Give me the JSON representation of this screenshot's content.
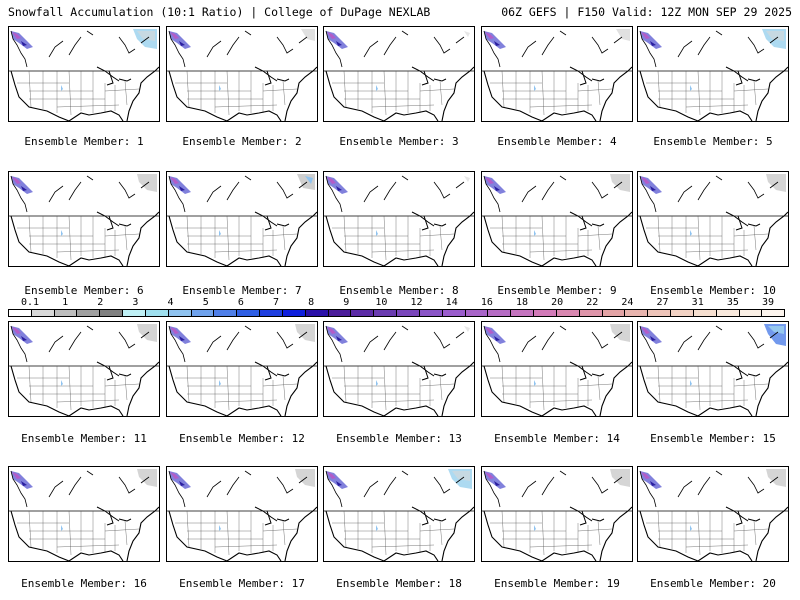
{
  "header": {
    "left": "Snowfall Accumulation (10:1 Ratio) | College of DuPage NEXLAB",
    "right": "06Z GEFS | F150 Valid: 12Z MON SEP 29 2025"
  },
  "members": [
    {
      "label": "Ensemble Member: 1",
      "canada_snow": "heavy",
      "ne_snow": "light-blue"
    },
    {
      "label": "Ensemble Member: 2",
      "canada_snow": "heavy",
      "ne_snow": "light"
    },
    {
      "label": "Ensemble Member: 3",
      "canada_snow": "heavy",
      "ne_snow": "trace"
    },
    {
      "label": "Ensemble Member: 4",
      "canada_snow": "heavy",
      "ne_snow": "light"
    },
    {
      "label": "Ensemble Member: 5",
      "canada_snow": "heavy",
      "ne_snow": "light-blue"
    },
    {
      "label": "Ensemble Member: 6",
      "canada_snow": "heavy",
      "ne_snow": "gray"
    },
    {
      "label": "Ensemble Member: 7",
      "canada_snow": "heavy",
      "ne_snow": "gray-blue"
    },
    {
      "label": "Ensemble Member: 8",
      "canada_snow": "heavy",
      "ne_snow": "trace"
    },
    {
      "label": "Ensemble Member: 9",
      "canada_snow": "heavy",
      "ne_snow": "gray"
    },
    {
      "label": "Ensemble Member: 10",
      "canada_snow": "heavy",
      "ne_snow": "gray"
    },
    {
      "label": "Ensemble Member: 11",
      "canada_snow": "heavy",
      "ne_snow": "gray"
    },
    {
      "label": "Ensemble Member: 12",
      "canada_snow": "heavy",
      "ne_snow": "gray"
    },
    {
      "label": "Ensemble Member: 13",
      "canada_snow": "heavy",
      "ne_snow": "trace"
    },
    {
      "label": "Ensemble Member: 14",
      "canada_snow": "heavy",
      "ne_snow": "gray"
    },
    {
      "label": "Ensemble Member: 15",
      "canada_snow": "heavy",
      "ne_snow": "blue"
    },
    {
      "label": "Ensemble Member: 16",
      "canada_snow": "heavy",
      "ne_snow": "gray"
    },
    {
      "label": "Ensemble Member: 17",
      "canada_snow": "heavy",
      "ne_snow": "gray"
    },
    {
      "label": "Ensemble Member: 18",
      "canada_snow": "heavy",
      "ne_snow": "light-blue"
    },
    {
      "label": "Ensemble Member: 19",
      "canada_snow": "heavy",
      "ne_snow": "gray"
    },
    {
      "label": "Ensemble Member: 20",
      "canada_snow": "heavy",
      "ne_snow": "gray"
    }
  ],
  "colorbar": {
    "labels": [
      "0.1",
      "1",
      "2",
      "3",
      "4",
      "5",
      "6",
      "7",
      "8",
      "9",
      "10",
      "12",
      "14",
      "16",
      "18",
      "20",
      "22",
      "24",
      "27",
      "31",
      "35",
      "39"
    ],
    "colors": [
      "#ffffff",
      "#d9d9d9",
      "#bdbdbd",
      "#a0a0a0",
      "#808080",
      "#bff0f5",
      "#9fe0ef",
      "#8fc3f0",
      "#6fa2ec",
      "#4f7fe8",
      "#2f5fe4",
      "#1f3fe0",
      "#0f1fdd",
      "#2a10a8",
      "#4b1c9a",
      "#5c2ba6",
      "#6a3bb0",
      "#7a46bb",
      "#8a54c6",
      "#9a5ccc",
      "#a864c8",
      "#b66cc4",
      "#c574bf",
      "#d27ab8",
      "#d987b0",
      "#df95aa",
      "#e3a3a5",
      "#e8b4ae",
      "#eec4b9",
      "#f2d2c4",
      "#f6dfd0",
      "#f9e9dd",
      "#fbf0e6",
      "#fdf5ee"
    ]
  }
}
